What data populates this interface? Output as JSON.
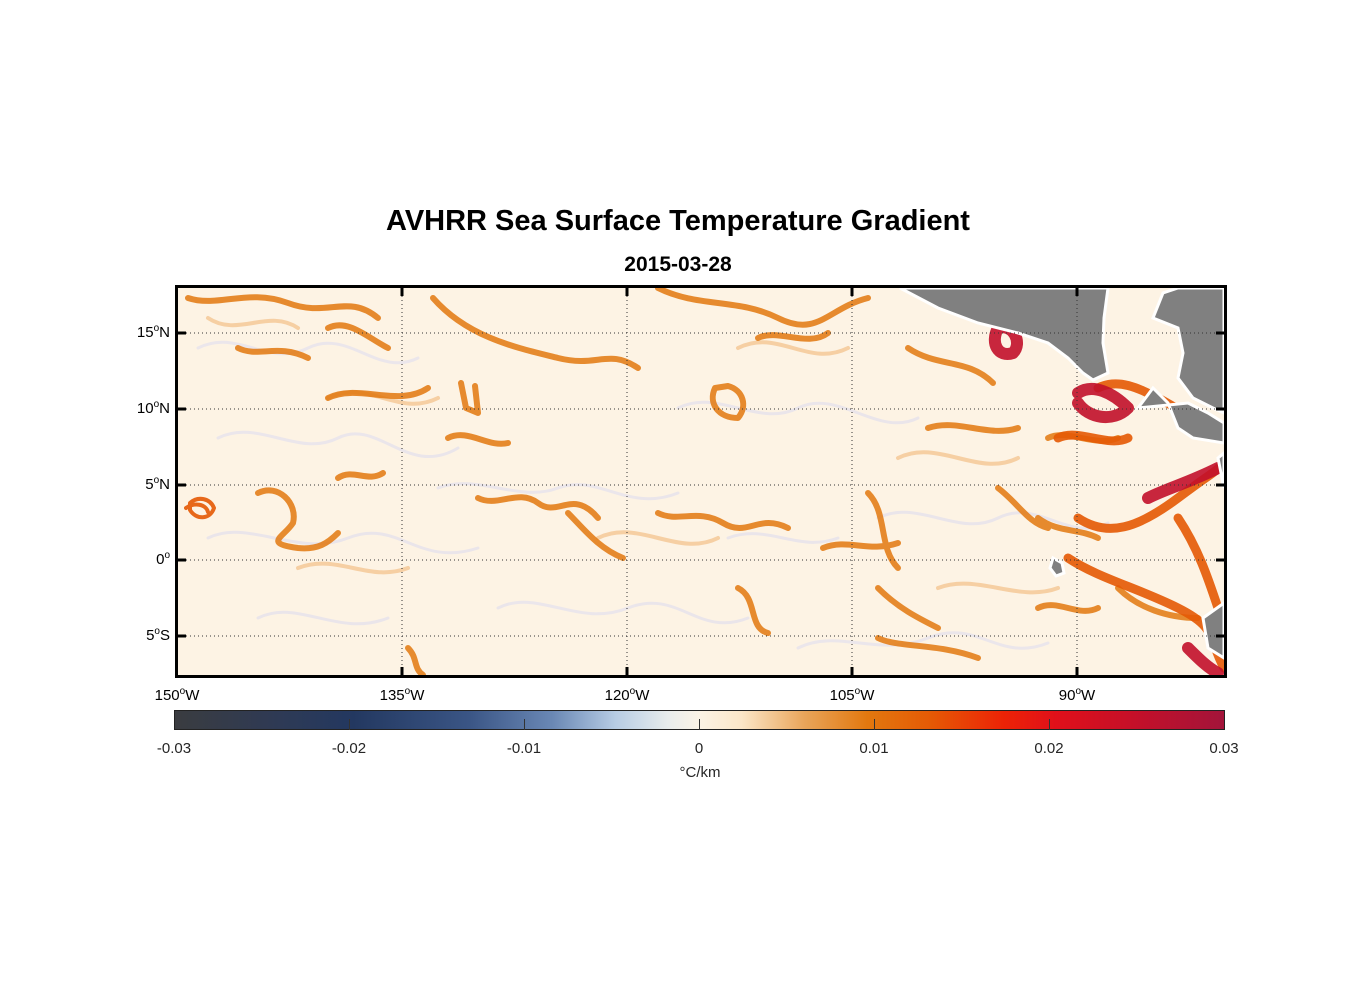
{
  "title": "AVHRR Sea Surface Temperature Gradient",
  "subtitle": "2015-03-28",
  "map": {
    "lat_labels": [
      {
        "deg": "15",
        "hem": "N",
        "value": 15
      },
      {
        "deg": "10",
        "hem": "N",
        "value": 10
      },
      {
        "deg": "5",
        "hem": "N",
        "value": 5
      },
      {
        "deg": "0",
        "hem": "",
        "value": 0
      },
      {
        "deg": "5",
        "hem": "S",
        "value": -5
      }
    ],
    "lon_labels": [
      {
        "deg": "150",
        "hem": "W",
        "value": -150
      },
      {
        "deg": "135",
        "hem": "W",
        "value": -135
      },
      {
        "deg": "120",
        "hem": "W",
        "value": -120
      },
      {
        "deg": "105",
        "hem": "W",
        "value": -105
      },
      {
        "deg": "90",
        "hem": "W",
        "value": -90
      }
    ],
    "land_color": "#808080",
    "ocean_base_color": "#fdf3e4",
    "front_colors": [
      "#e2780f",
      "#e55a05",
      "#c2102a"
    ]
  },
  "colorbar": {
    "ticks": [
      "-0.03",
      "-0.02",
      "-0.01",
      "0",
      "0.01",
      "0.02",
      "0.03"
    ],
    "unit_symbol": "°",
    "unit_text": "C/km"
  }
}
